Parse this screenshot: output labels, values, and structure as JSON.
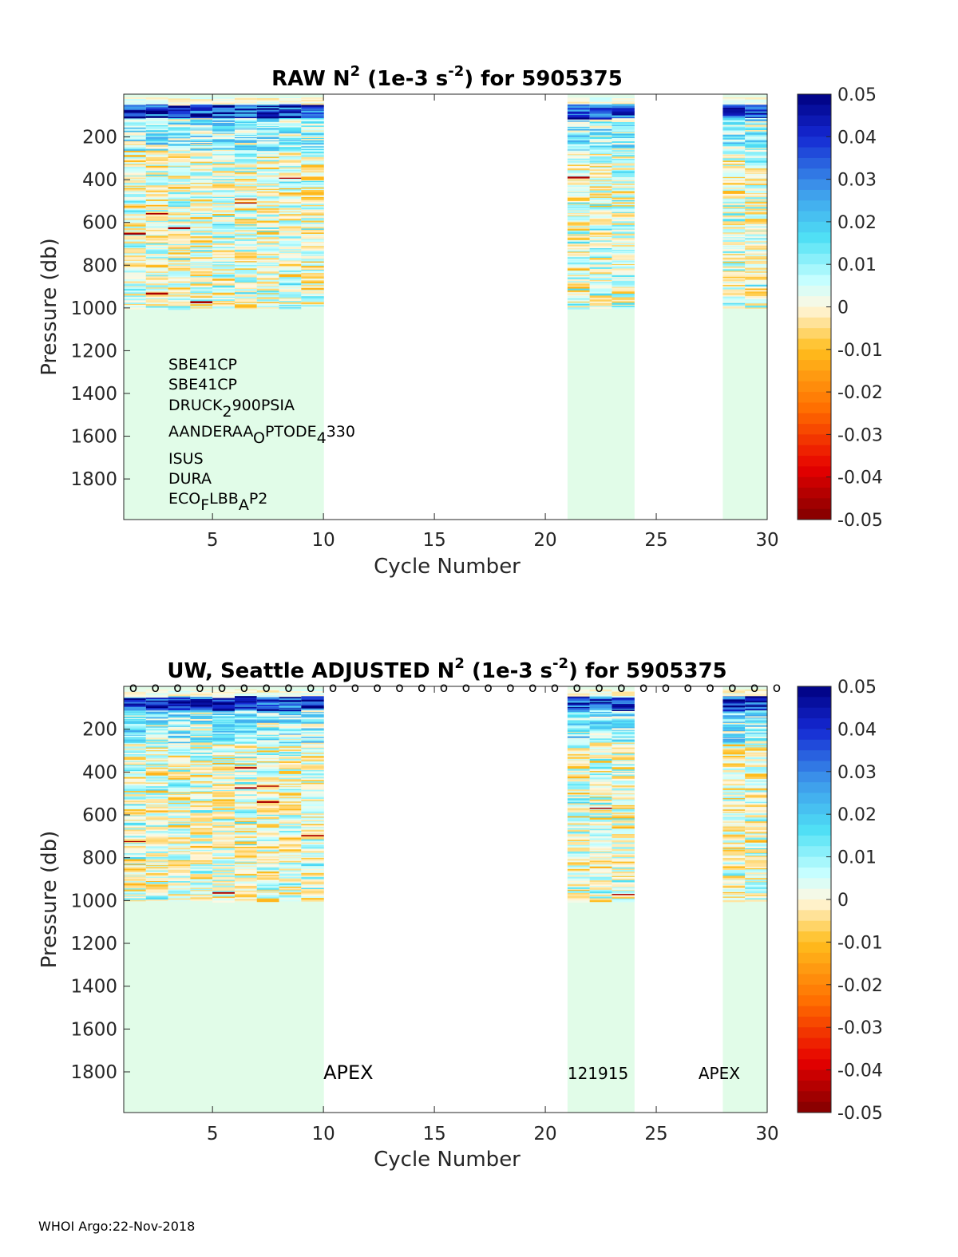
{
  "chart_data": [
    {
      "type": "heatmap",
      "title": {
        "prefix": "RAW N",
        "sup1": "2",
        "middle": " (1e-3 s",
        "sup2": "-2",
        "suffix": ") for 5905375"
      },
      "xlabel": "Cycle Number",
      "ylabel": "Pressure (db)",
      "xlim": [
        1,
        30
      ],
      "ylim": [
        1990,
        0
      ],
      "xticks": [
        5,
        10,
        15,
        20,
        25,
        30
      ],
      "yticks": [
        200,
        400,
        600,
        800,
        1000,
        1200,
        1400,
        1600,
        1800
      ],
      "cycles_with_data": [
        1,
        2,
        3,
        4,
        5,
        6,
        7,
        8,
        9,
        21,
        22,
        23,
        28,
        29
      ],
      "profile_max_pressure": 1000,
      "colorbar": {
        "range": [
          -0.05,
          0.05
        ],
        "ticks": [
          "0.05",
          "0.04",
          "0.03",
          "0.02",
          "0.01",
          "0",
          "-0.01",
          "-0.02",
          "-0.03",
          "-0.04",
          "-0.05"
        ]
      },
      "annotations": [
        {
          "kind": "plain",
          "text": "SBE41CP"
        },
        {
          "kind": "plain",
          "text": "SBE41CP"
        },
        {
          "kind": "sub",
          "parts": [
            [
              "DRUCK",
              false
            ],
            [
              "2",
              true
            ],
            [
              "900PSIA",
              false
            ]
          ]
        },
        {
          "kind": "sub",
          "parts": [
            [
              "AANDERAA",
              false
            ],
            [
              "O",
              true
            ],
            [
              "PTODE",
              false
            ],
            [
              "4",
              true
            ],
            [
              "330",
              false
            ]
          ]
        },
        {
          "kind": "plain",
          "text": "ISUS"
        },
        {
          "kind": "plain",
          "text": "DURA"
        },
        {
          "kind": "sub",
          "parts": [
            [
              "ECO",
              false
            ],
            [
              "F",
              true
            ],
            [
              "LBB",
              false
            ],
            [
              "A",
              true
            ],
            [
              "P2",
              false
            ]
          ]
        }
      ]
    },
    {
      "type": "heatmap",
      "title": {
        "prefix": "UW, Seattle  ADJUSTED N",
        "sup1": "2",
        "middle": " (1e-3 s",
        "sup2": "-2",
        "suffix": ") for 5905375"
      },
      "xlabel": "Cycle Number",
      "ylabel": "Pressure (db)",
      "xlim": [
        1,
        30
      ],
      "ylim": [
        1990,
        0
      ],
      "xticks": [
        5,
        10,
        15,
        20,
        25,
        30
      ],
      "yticks": [
        200,
        400,
        600,
        800,
        1000,
        1200,
        1400,
        1600,
        1800
      ],
      "cycles_with_data": [
        1,
        2,
        3,
        4,
        5,
        6,
        7,
        8,
        9,
        21,
        22,
        23,
        28,
        29
      ],
      "profile_max_pressure": 1000,
      "marker_row": {
        "symbol": "o",
        "cycles": [
          1,
          2,
          3,
          4,
          5,
          6,
          7,
          8,
          9,
          10,
          11,
          12,
          13,
          14,
          15,
          16,
          17,
          18,
          19,
          20,
          21,
          22,
          23,
          24,
          25,
          26,
          27,
          28,
          29,
          30
        ]
      },
      "colorbar": {
        "range": [
          -0.05,
          0.05
        ],
        "ticks": [
          "0.05",
          "0.04",
          "0.03",
          "0.02",
          "0.01",
          "0",
          "-0.01",
          "-0.02",
          "-0.03",
          "-0.04",
          "-0.05"
        ]
      },
      "float_labels": [
        {
          "text": "APEX",
          "cycle": 10,
          "pressure": 1800,
          "size": "large"
        },
        {
          "text": "121915",
          "cycle": 21,
          "pressure": 1800,
          "size": "small"
        },
        {
          "text": "APEX",
          "cycle": 26.9,
          "pressure": 1800,
          "size": "small"
        }
      ]
    }
  ],
  "footer": "WHOI Argo:22-Nov-2018"
}
